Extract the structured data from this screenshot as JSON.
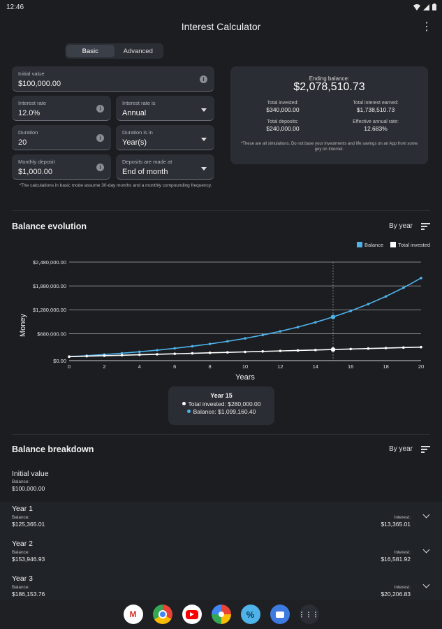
{
  "status": {
    "time": "12:46"
  },
  "app": {
    "title": "Interest Calculator"
  },
  "tabs": [
    {
      "label": "Basic",
      "active": true
    },
    {
      "label": "Advanced",
      "active": false
    }
  ],
  "form": {
    "initial_value": {
      "label": "Initial value",
      "value": "$100,000.00"
    },
    "interest_rate": {
      "label": "Interest rate",
      "value": "12.0%"
    },
    "interest_rate_is": {
      "label": "Interest rate is",
      "value": "Annual"
    },
    "duration": {
      "label": "Duration",
      "value": "20"
    },
    "duration_in": {
      "label": "Duration is in",
      "value": "Year(s)"
    },
    "monthly_deposit": {
      "label": "Monthly deposit",
      "value": "$1,000.00"
    },
    "deposits_made_at": {
      "label": "Deposits are made at",
      "value": "End of month"
    },
    "note": "*The calculations in basic mode assume 30-day months and a monthly compounding frequency."
  },
  "summary": {
    "ending_label": "Ending balance:",
    "ending_value": "$2,078,510.73",
    "total_invested_label": "Total invested:",
    "total_invested_value": "$340,000.00",
    "total_interest_label": "Total interest earned:",
    "total_interest_value": "$1,738,510.73",
    "total_deposits_label": "Total deposits:",
    "total_deposits_value": "$240,000.00",
    "effective_rate_label": "Effective annual rate:",
    "effective_rate_value": "12.683%",
    "disclaimer": "*These are all simulations. Do not base your investments and life savings on an App from some guy on Internet."
  },
  "balance_evolution": {
    "title": "Balance evolution",
    "sort_label": "By year"
  },
  "chart_data": {
    "type": "line",
    "xlabel": "Years",
    "ylabel": "Money",
    "x": [
      0,
      1,
      2,
      3,
      4,
      5,
      6,
      7,
      8,
      9,
      10,
      11,
      12,
      13,
      14,
      15,
      16,
      17,
      18,
      19,
      20
    ],
    "xlim": [
      0,
      20
    ],
    "ylim": [
      0,
      2480000
    ],
    "y_ticks": [
      0,
      680000,
      1280000,
      1880000,
      2480000
    ],
    "y_tick_labels": [
      "$0.00",
      "$680,000.00",
      "$1,280,000.00",
      "$1,880,000.00",
      "$2,480,000.00"
    ],
    "x_ticks": [
      0,
      2,
      4,
      6,
      8,
      10,
      12,
      14,
      16,
      18,
      20
    ],
    "x_tick_labels": [
      "0",
      "2",
      "4",
      "6",
      "8",
      "10",
      "12",
      "14",
      "16",
      "18",
      "20"
    ],
    "series": [
      {
        "name": "Balance",
        "color": "#4fb3ea",
        "values": [
          100000,
          125365,
          153947,
          186154,
          222446,
          263339,
          309418,
          361342,
          419851,
          485780,
          560071,
          643784,
          738114,
          844409,
          964185,
          1099160,
          1251250,
          1422630,
          1615750,
          1833370,
          2078510
        ]
      },
      {
        "name": "Total invested",
        "color": "#ffffff",
        "values": [
          100000,
          112000,
          124000,
          136000,
          148000,
          160000,
          172000,
          184000,
          196000,
          208000,
          220000,
          232000,
          244000,
          256000,
          268000,
          280000,
          292000,
          304000,
          316000,
          328000,
          340000
        ]
      }
    ],
    "highlight_x": 15,
    "legend_position": "top-right",
    "grid": true
  },
  "tooltip": {
    "title": "Year 15",
    "invested": "Total invested: $280,000.00",
    "balance": "Balance: $1,099,160.40"
  },
  "breakdown": {
    "title": "Balance breakdown",
    "sort_label": "By year",
    "balance_key": "Balance:",
    "interest_key": "Interest:",
    "rows": [
      {
        "name": "Initial value",
        "balance": "$100,000.00",
        "interest": ""
      },
      {
        "name": "Year 1",
        "balance": "$125,365.01",
        "interest": "$13,365.01"
      },
      {
        "name": "Year 2",
        "balance": "$153,946.93",
        "interest": "$16,581.92"
      },
      {
        "name": "Year 3",
        "balance": "$186,153.76",
        "interest": "$20,206.83"
      }
    ]
  },
  "dock": {
    "apps": [
      "gmail",
      "chrome",
      "youtube",
      "photos",
      "calculator",
      "messages",
      "app-drawer"
    ]
  }
}
